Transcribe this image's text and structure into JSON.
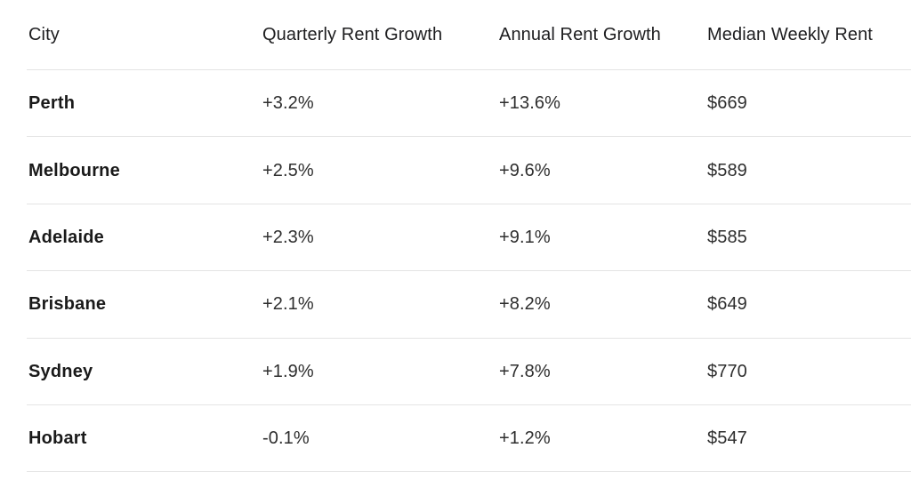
{
  "colors": {
    "background": "#ffffff",
    "text_primary": "#1a1a1a",
    "text_secondary": "#2e2e2e",
    "divider": "#e4e4e4"
  },
  "chart_data": {
    "type": "table",
    "columns": [
      "City",
      "Quarterly Rent Growth",
      "Annual Rent Growth",
      "Median Weekly Rent"
    ],
    "rows": [
      {
        "city": "Perth",
        "quarterly": "+3.2%",
        "annual": "+13.6%",
        "median_weekly_rent": "$669"
      },
      {
        "city": "Melbourne",
        "quarterly": "+2.5%",
        "annual": "+9.6%",
        "median_weekly_rent": "$589"
      },
      {
        "city": "Adelaide",
        "quarterly": "+2.3%",
        "annual": "+9.1%",
        "median_weekly_rent": "$585"
      },
      {
        "city": "Brisbane",
        "quarterly": "+2.1%",
        "annual": "+8.2%",
        "median_weekly_rent": "$649"
      },
      {
        "city": "Sydney",
        "quarterly": "+1.9%",
        "annual": "+7.8%",
        "median_weekly_rent": "$770"
      },
      {
        "city": "Hobart",
        "quarterly": "-0.1%",
        "annual": "+1.2%",
        "median_weekly_rent": "$547"
      }
    ]
  }
}
